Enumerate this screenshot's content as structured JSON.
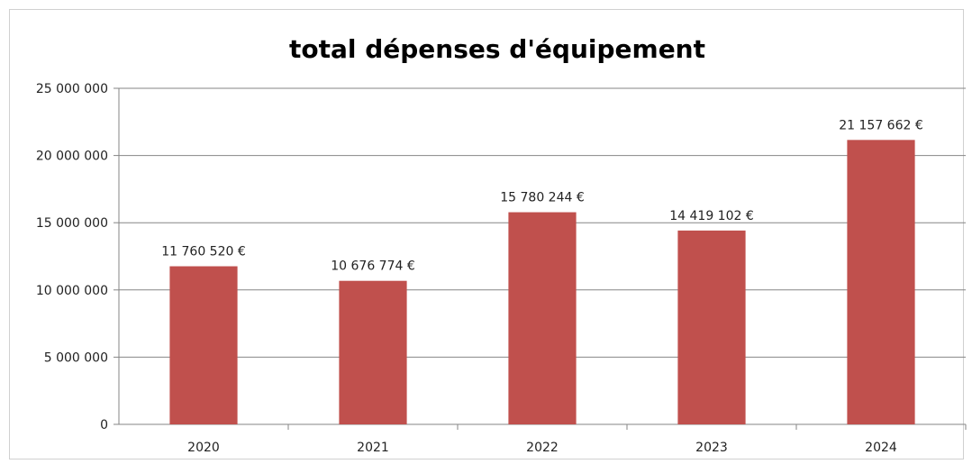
{
  "chart_data": {
    "type": "bar",
    "title": "total dépenses d'équipement",
    "categories": [
      "2020",
      "2021",
      "2022",
      "2023",
      "2024"
    ],
    "values": [
      11760520,
      10676774,
      15780244,
      14419102,
      21157662
    ],
    "data_labels": [
      "11 760 520 €",
      "10 676 774 €",
      "15 780 244 €",
      "14 419 102 €",
      "21 157 662 €"
    ],
    "y_ticks": [
      0,
      5000000,
      10000000,
      15000000,
      20000000,
      25000000
    ],
    "y_tick_labels": [
      "0",
      "5 000 000",
      "10 000 000",
      "15 000 000",
      "20 000 000",
      "25 000 000"
    ],
    "ylim": [
      0,
      25000000
    ],
    "xlabel": "",
    "ylabel": "",
    "grid": true,
    "legend": "none",
    "bar_color": "#c0504d",
    "grid_color": "#868686"
  }
}
